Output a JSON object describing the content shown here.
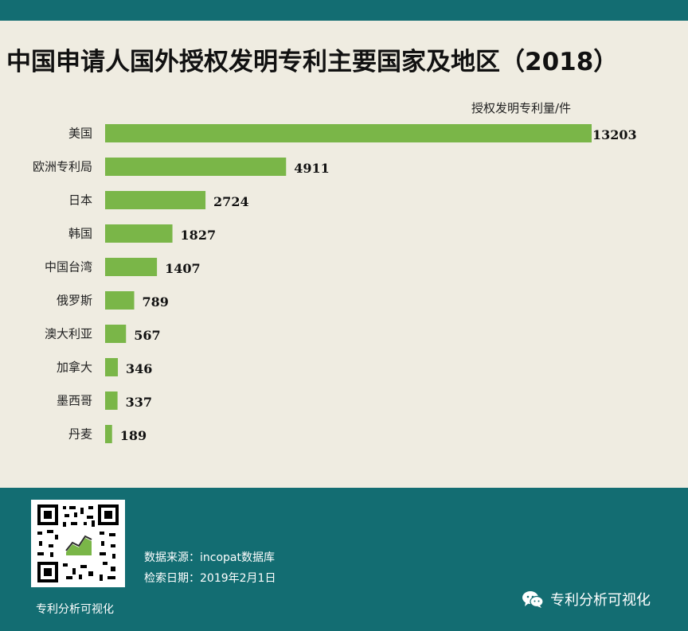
{
  "header": {
    "title": "中国申请人国外授权发明专利主要国家及地区（2018）",
    "unit_label": "授权发明专利量/件"
  },
  "chart_data": {
    "type": "bar",
    "orientation": "horizontal",
    "categories": [
      "美国",
      "欧洲专利局",
      "日本",
      "韩国",
      "中国台湾",
      "俄罗斯",
      "澳大利亚",
      "加拿大",
      "墨西哥",
      "丹麦"
    ],
    "values": [
      13203,
      4911,
      2724,
      1827,
      1407,
      789,
      567,
      346,
      337,
      189
    ],
    "title": "中国申请人国外授权发明专利主要国家及地区（2018）",
    "unit": "授权发明专利量/件",
    "bar_color": "#7ab648",
    "grid": false,
    "legend": "none"
  },
  "footer": {
    "qr_label": "专利分析可视化",
    "source": "数据来源：incopat数据库",
    "date": "检索日期：2019年2月1日",
    "brand": "专利分析可视化",
    "band_color": "#136d72"
  }
}
